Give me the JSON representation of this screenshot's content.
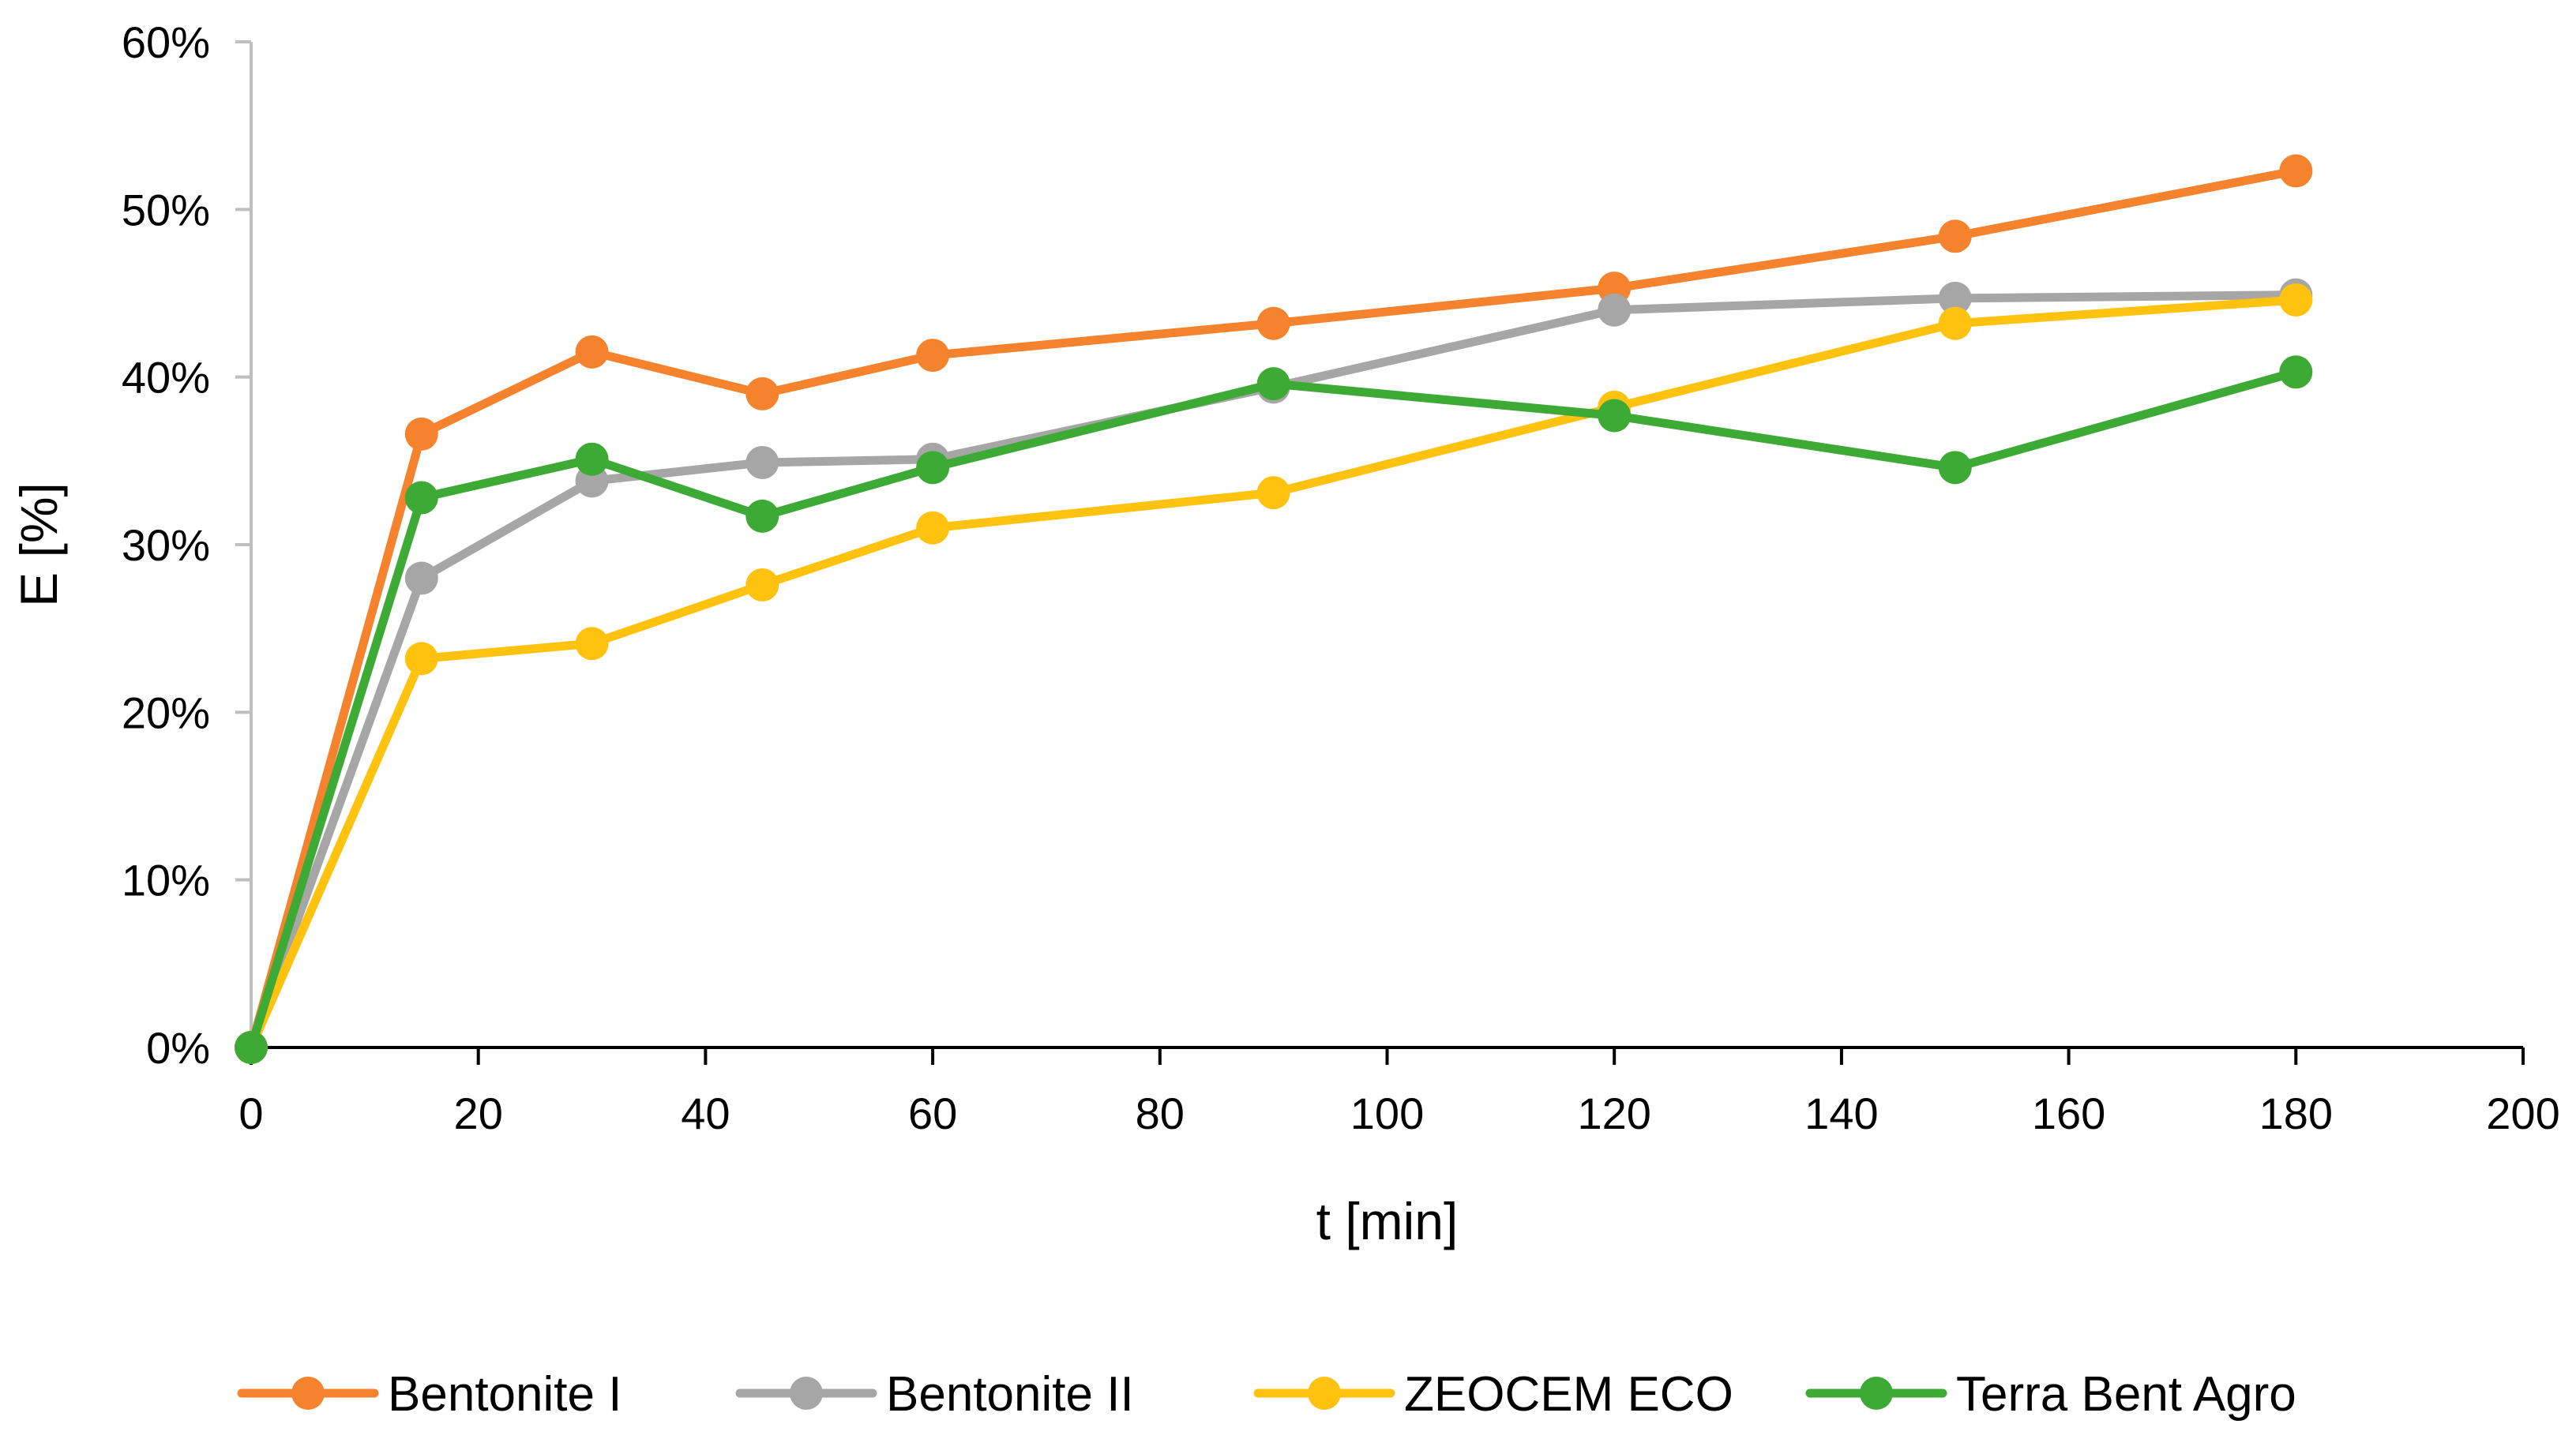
{
  "chart_data": {
    "type": "line",
    "title": "",
    "xlabel": "t [min]",
    "ylabel": "E [%]",
    "xlim": [
      0,
      200
    ],
    "ylim": [
      0,
      60
    ],
    "x_ticks": [
      0,
      20,
      40,
      60,
      80,
      100,
      120,
      140,
      160,
      180,
      200
    ],
    "y_ticks": [
      0,
      10,
      20,
      30,
      40,
      50,
      60
    ],
    "x_tick_labels": [
      "0",
      "20",
      "40",
      "60",
      "80",
      "100",
      "120",
      "140",
      "160",
      "180",
      "200"
    ],
    "y_tick_labels": [
      "0%",
      "10%",
      "20%",
      "30%",
      "40%",
      "50%",
      "60%"
    ],
    "grid": false,
    "legend_position": "bottom",
    "x": [
      0,
      15,
      30,
      45,
      60,
      90,
      120,
      150,
      180
    ],
    "series": [
      {
        "name": "Bentonite I",
        "color": "#F5822C",
        "values": [
          0,
          36.6,
          41.5,
          39.0,
          41.3,
          43.2,
          45.3,
          48.4,
          52.3
        ]
      },
      {
        "name": "Bentonite II",
        "color": "#A6A6A6",
        "values": [
          0,
          28.0,
          33.8,
          34.9,
          35.1,
          39.4,
          44.0,
          44.7,
          44.9
        ]
      },
      {
        "name": "ZEOCEM ECO",
        "color": "#FFC20E",
        "values": [
          0,
          23.2,
          24.1,
          27.6,
          31.0,
          33.1,
          38.2,
          43.2,
          44.6
        ]
      },
      {
        "name": "Terra Bent Agro",
        "color": "#3DAA35",
        "values": [
          0,
          32.8,
          35.1,
          31.7,
          34.6,
          39.6,
          37.7,
          34.6,
          40.3
        ]
      }
    ]
  }
}
